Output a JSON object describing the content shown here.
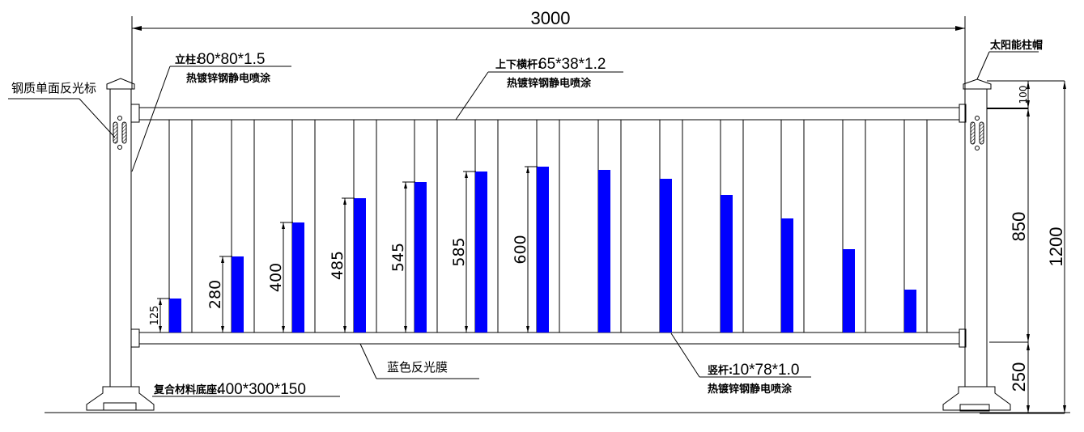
{
  "dimensions": {
    "total_length": "3000",
    "total_height": "1200",
    "top_offset": "100",
    "rail_spacing": "850",
    "bottom_offset": "250",
    "film_heights": [
      "125",
      "280",
      "400",
      "485",
      "545",
      "585",
      "600"
    ]
  },
  "labels": {
    "post_spec_name": "立柱:",
    "post_spec": "80*80*1.5",
    "post_finish": "热镀锌钢静电喷涂",
    "rail_spec_name": "上下横杆:",
    "rail_spec": "65*38*1.2",
    "rail_finish": "热镀锌钢静电喷涂",
    "reflector": "钢质单面反光标",
    "solar_cap": "太阳能柱帽",
    "blue_film": "蓝色反光膜",
    "base_spec_name": "复合材料底座:",
    "base_spec": "400*300*150",
    "picket_spec_name": "竖杆:",
    "picket_spec": "10*78*1.0",
    "picket_finish": "热镀锌钢静电喷涂"
  },
  "colors": {
    "film": "#0000ff",
    "line": "#000000"
  }
}
